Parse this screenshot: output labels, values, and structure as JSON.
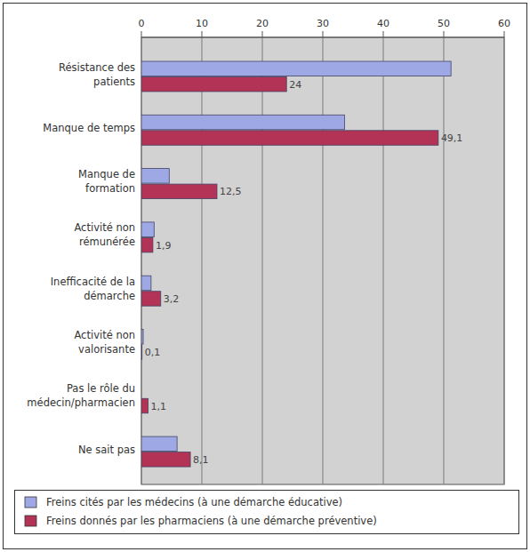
{
  "chart_data": {
    "type": "bar",
    "orientation": "horizontal",
    "grid": true,
    "categories": [
      "Résistance des\npatients",
      "Manque de temps",
      "Manque de\nformation",
      "Activité non\nrémunérée",
      "Inefficacité de la\ndémarche",
      "Activité non\nvalorisante",
      "Pas le rôle du\nmédecin/pharmacien",
      "Ne sait pas"
    ],
    "xlim": [
      0,
      60
    ],
    "xticks": [
      0,
      10,
      20,
      30,
      40,
      50,
      60
    ],
    "legend": "bottom",
    "series": [
      {
        "name": "Freins cités par les médecins (à une démarche éducative)",
        "color": "#9da8e4",
        "values": [
          51.2,
          33.6,
          4.6,
          2.1,
          1.6,
          0.3,
          null,
          5.9
        ]
      },
      {
        "name": "Freins donnés par les pharmaciens (à une démarche préventive)",
        "color": "#b23356",
        "data_labels": true,
        "values": [
          24,
          49.1,
          12.5,
          1.9,
          3.2,
          0.1,
          1.1,
          8.1
        ],
        "value_labels": [
          "24",
          "49,1",
          "12,5",
          "1,9",
          "3,2",
          "0,1",
          "1,1",
          "8,1"
        ]
      }
    ]
  }
}
